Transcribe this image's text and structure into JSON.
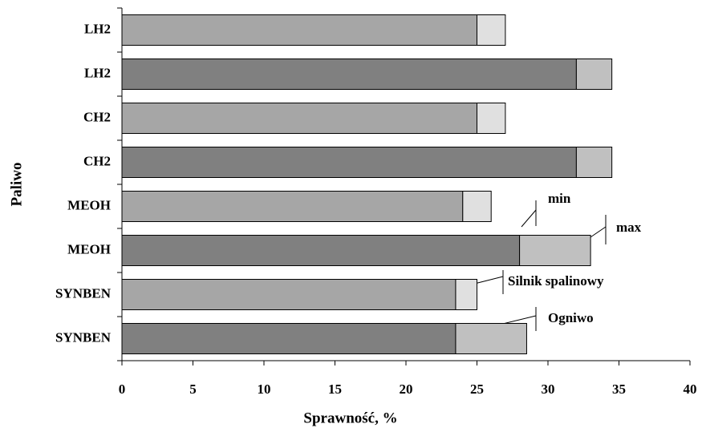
{
  "chart_data": {
    "type": "stacked-hbar",
    "x_label": "Sprawność, %",
    "y_label": "Paliwo",
    "categories": [
      "LH2",
      "LH2",
      "CH2",
      "CH2",
      "MEOH",
      "MEOH",
      "SYNBEN",
      "SYNBEN"
    ],
    "series": [
      {
        "values": [
          25,
          32,
          25,
          32,
          24,
          28,
          23.5,
          23.5
        ],
        "colors": [
          "#a6a6a6",
          "#808080",
          "#a6a6a6",
          "#808080",
          "#a6a6a6",
          "#808080",
          "#a6a6a6",
          "#808080"
        ]
      },
      {
        "values": [
          2,
          2.5,
          2,
          2.5,
          2,
          5,
          1.5,
          5
        ],
        "colors": [
          "#e0e0e0",
          "#c0c0c0",
          "#e0e0e0",
          "#c0c0c0",
          "#e0e0e0",
          "#c0c0c0",
          "#e0e0e0",
          "#c0c0c0"
        ]
      }
    ],
    "xlim": [
      0,
      40
    ],
    "xticks": [
      0,
      5,
      10,
      15,
      20,
      25,
      30,
      35,
      40
    ],
    "annotations": [
      "min",
      "max",
      "Silnik spalinowy",
      "Ogniwo"
    ]
  }
}
